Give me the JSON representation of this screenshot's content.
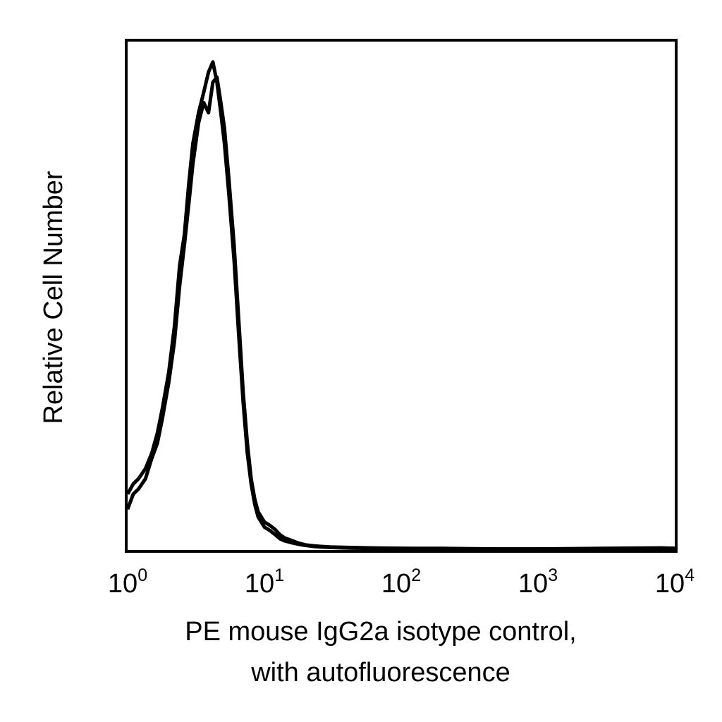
{
  "chart_data": {
    "type": "line",
    "xscale": "log",
    "xlim": [
      1,
      10000
    ],
    "ylim": [
      0,
      1.0
    ],
    "grid": false,
    "legend": "none",
    "xlabel_lines": [
      "PE mouse IgG2a isotype control,",
      "with autofluorescence"
    ],
    "ylabel": "Relative Cell Number",
    "xticks": [
      {
        "value": 1,
        "base": "10",
        "exp": "0"
      },
      {
        "value": 10,
        "base": "10",
        "exp": "1"
      },
      {
        "value": 100,
        "base": "10",
        "exp": "2"
      },
      {
        "value": 1000,
        "base": "10",
        "exp": "3"
      },
      {
        "value": 10000,
        "base": "10",
        "exp": "4"
      }
    ],
    "series": [
      {
        "color": "#000000",
        "x": [
          1.0,
          1.1,
          1.2,
          1.35,
          1.5,
          1.65,
          1.8,
          2.0,
          2.2,
          2.4,
          2.6,
          2.8,
          3.0,
          3.3,
          3.6,
          3.9,
          4.2,
          4.5,
          4.8,
          5.1,
          5.5,
          6.0,
          6.5,
          7.0,
          7.5,
          8.0,
          8.5,
          9.0,
          10.0,
          11.0,
          12.0,
          13.0,
          14.0,
          16.0,
          18.0,
          20.0,
          23.0,
          26.0,
          30.0,
          40.0,
          60.0,
          100.0,
          200.0,
          500.0,
          1000.0,
          3000.0,
          8000.0,
          10000.0
        ],
        "y": [
          0.11,
          0.13,
          0.14,
          0.16,
          0.19,
          0.23,
          0.28,
          0.35,
          0.44,
          0.56,
          0.62,
          0.72,
          0.8,
          0.86,
          0.9,
          0.94,
          0.96,
          0.92,
          0.86,
          0.8,
          0.7,
          0.57,
          0.42,
          0.29,
          0.19,
          0.13,
          0.09,
          0.065,
          0.045,
          0.038,
          0.03,
          0.022,
          0.018,
          0.014,
          0.011,
          0.009,
          0.007,
          0.006,
          0.005,
          0.004,
          0.003,
          0.003,
          0.002,
          0.002,
          0.002,
          0.002,
          0.003,
          0.003
        ]
      },
      {
        "color": "#000000",
        "x": [
          1.0,
          1.1,
          1.2,
          1.35,
          1.5,
          1.65,
          1.8,
          2.0,
          2.2,
          2.4,
          2.6,
          2.8,
          3.0,
          3.3,
          3.6,
          3.9,
          4.2,
          4.5,
          4.8,
          5.1,
          5.5,
          6.0,
          6.5,
          7.0,
          7.5,
          8.0,
          8.5,
          9.0,
          10.0,
          11.0,
          12.0,
          13.0,
          14.0,
          16.0,
          18.0,
          20.0,
          23.0,
          26.0,
          30.0,
          40.0,
          60.0,
          100.0,
          200.0,
          500.0,
          1000.0,
          3000.0,
          8000.0,
          10000.0
        ],
        "y": [
          0.08,
          0.11,
          0.12,
          0.14,
          0.18,
          0.21,
          0.26,
          0.33,
          0.41,
          0.52,
          0.6,
          0.68,
          0.76,
          0.84,
          0.88,
          0.86,
          0.92,
          0.93,
          0.88,
          0.83,
          0.73,
          0.6,
          0.45,
          0.31,
          0.21,
          0.14,
          0.1,
          0.075,
          0.055,
          0.048,
          0.04,
          0.03,
          0.024,
          0.018,
          0.013,
          0.01,
          0.008,
          0.007,
          0.006,
          0.005,
          0.004,
          0.003,
          0.003,
          0.002,
          0.002,
          0.003,
          0.004,
          0.003
        ]
      }
    ]
  }
}
